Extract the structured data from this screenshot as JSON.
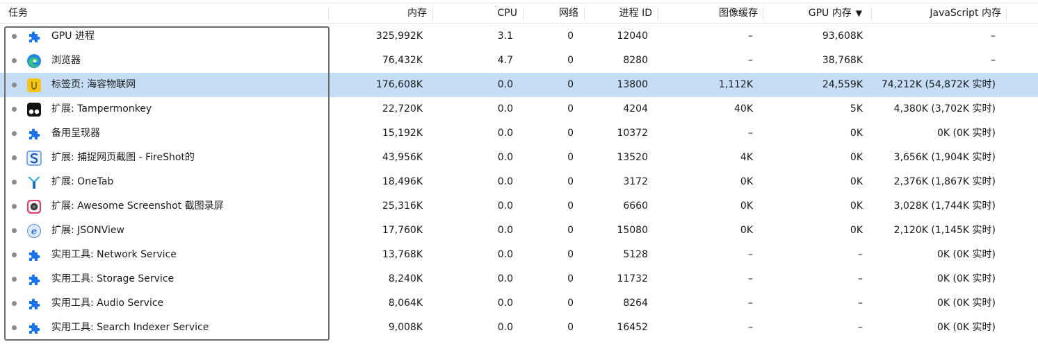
{
  "columns": {
    "task": "任务",
    "memory": "内存",
    "cpu": "CPU",
    "network": "网络",
    "pid": "进程 ID",
    "image_cache": "图像缓存",
    "gpu_memory": "GPU 内存",
    "gpu_sort_indicator": "▼",
    "js_memory": "JavaScript 内存"
  },
  "selected_row": 2,
  "rows": [
    {
      "icon": "puzzle-icon",
      "task": "GPU 进程",
      "memory": "325,992K",
      "cpu": "3.1",
      "network": "0",
      "pid": "12040",
      "image_cache": "–",
      "gpu_memory": "93,608K",
      "js_memory": "–"
    },
    {
      "icon": "edge-browser-icon",
      "task": "浏览器",
      "memory": "76,432K",
      "cpu": "4.7",
      "network": "0",
      "pid": "8280",
      "image_cache": "–",
      "gpu_memory": "38,768K",
      "js_memory": "–"
    },
    {
      "icon": "site-favicon-icon",
      "task": "标签页: 海容物联网",
      "memory": "176,608K",
      "cpu": "0.0",
      "network": "0",
      "pid": "13800",
      "image_cache": "1,112K",
      "gpu_memory": "24,559K",
      "js_memory": "74,212K (54,872K 实时)"
    },
    {
      "icon": "tampermonkey-icon",
      "task": "扩展: Tampermonkey",
      "memory": "22,720K",
      "cpu": "0.0",
      "network": "0",
      "pid": "4204",
      "image_cache": "40K",
      "gpu_memory": "5K",
      "js_memory": "4,380K (3,702K 实时)"
    },
    {
      "icon": "puzzle-icon",
      "task": "备用呈现器",
      "memory": "15,192K",
      "cpu": "0.0",
      "network": "0",
      "pid": "10372",
      "image_cache": "–",
      "gpu_memory": "0K",
      "js_memory": "0K (0K 实时)"
    },
    {
      "icon": "fireshot-icon",
      "task": "扩展: 捕捉网页截图 - FireShot的",
      "memory": "43,956K",
      "cpu": "0.0",
      "network": "0",
      "pid": "13520",
      "image_cache": "4K",
      "gpu_memory": "0K",
      "js_memory": "3,656K (1,904K 实时)"
    },
    {
      "icon": "onetab-icon",
      "task": "扩展: OneTab",
      "memory": "18,496K",
      "cpu": "0.0",
      "network": "0",
      "pid": "3172",
      "image_cache": "0K",
      "gpu_memory": "0K",
      "js_memory": "2,376K (1,867K 实时)"
    },
    {
      "icon": "awesome-screenshot-icon",
      "task": "扩展: Awesome Screenshot 截图录屏",
      "memory": "25,316K",
      "cpu": "0.0",
      "network": "0",
      "pid": "6660",
      "image_cache": "0K",
      "gpu_memory": "0K",
      "js_memory": "3,028K (1,744K 实时)"
    },
    {
      "icon": "jsonview-icon",
      "task": "扩展: JSONView",
      "memory": "17,760K",
      "cpu": "0.0",
      "network": "0",
      "pid": "15080",
      "image_cache": "0K",
      "gpu_memory": "0K",
      "js_memory": "2,120K (1,145K 实时)"
    },
    {
      "icon": "puzzle-icon",
      "task": "实用工具: Network Service",
      "memory": "13,768K",
      "cpu": "0.0",
      "network": "0",
      "pid": "5128",
      "image_cache": "–",
      "gpu_memory": "–",
      "js_memory": "0K (0K 实时)"
    },
    {
      "icon": "puzzle-icon",
      "task": "实用工具: Storage Service",
      "memory": "8,240K",
      "cpu": "0.0",
      "network": "0",
      "pid": "11732",
      "image_cache": "–",
      "gpu_memory": "–",
      "js_memory": "0K (0K 实时)"
    },
    {
      "icon": "puzzle-icon",
      "task": "实用工具: Audio Service",
      "memory": "8,064K",
      "cpu": "0.0",
      "network": "0",
      "pid": "8264",
      "image_cache": "–",
      "gpu_memory": "–",
      "js_memory": "0K (0K 实时)"
    },
    {
      "icon": "puzzle-icon",
      "task": "实用工具: Search Indexer Service",
      "memory": "9,008K",
      "cpu": "0.0",
      "network": "0",
      "pid": "16452",
      "image_cache": "–",
      "gpu_memory": "–",
      "js_memory": "0K (0K 实时)"
    }
  ],
  "colors": {
    "selected_row_bg": "#c5def5",
    "puzzle_blue": "#1a73e8"
  }
}
